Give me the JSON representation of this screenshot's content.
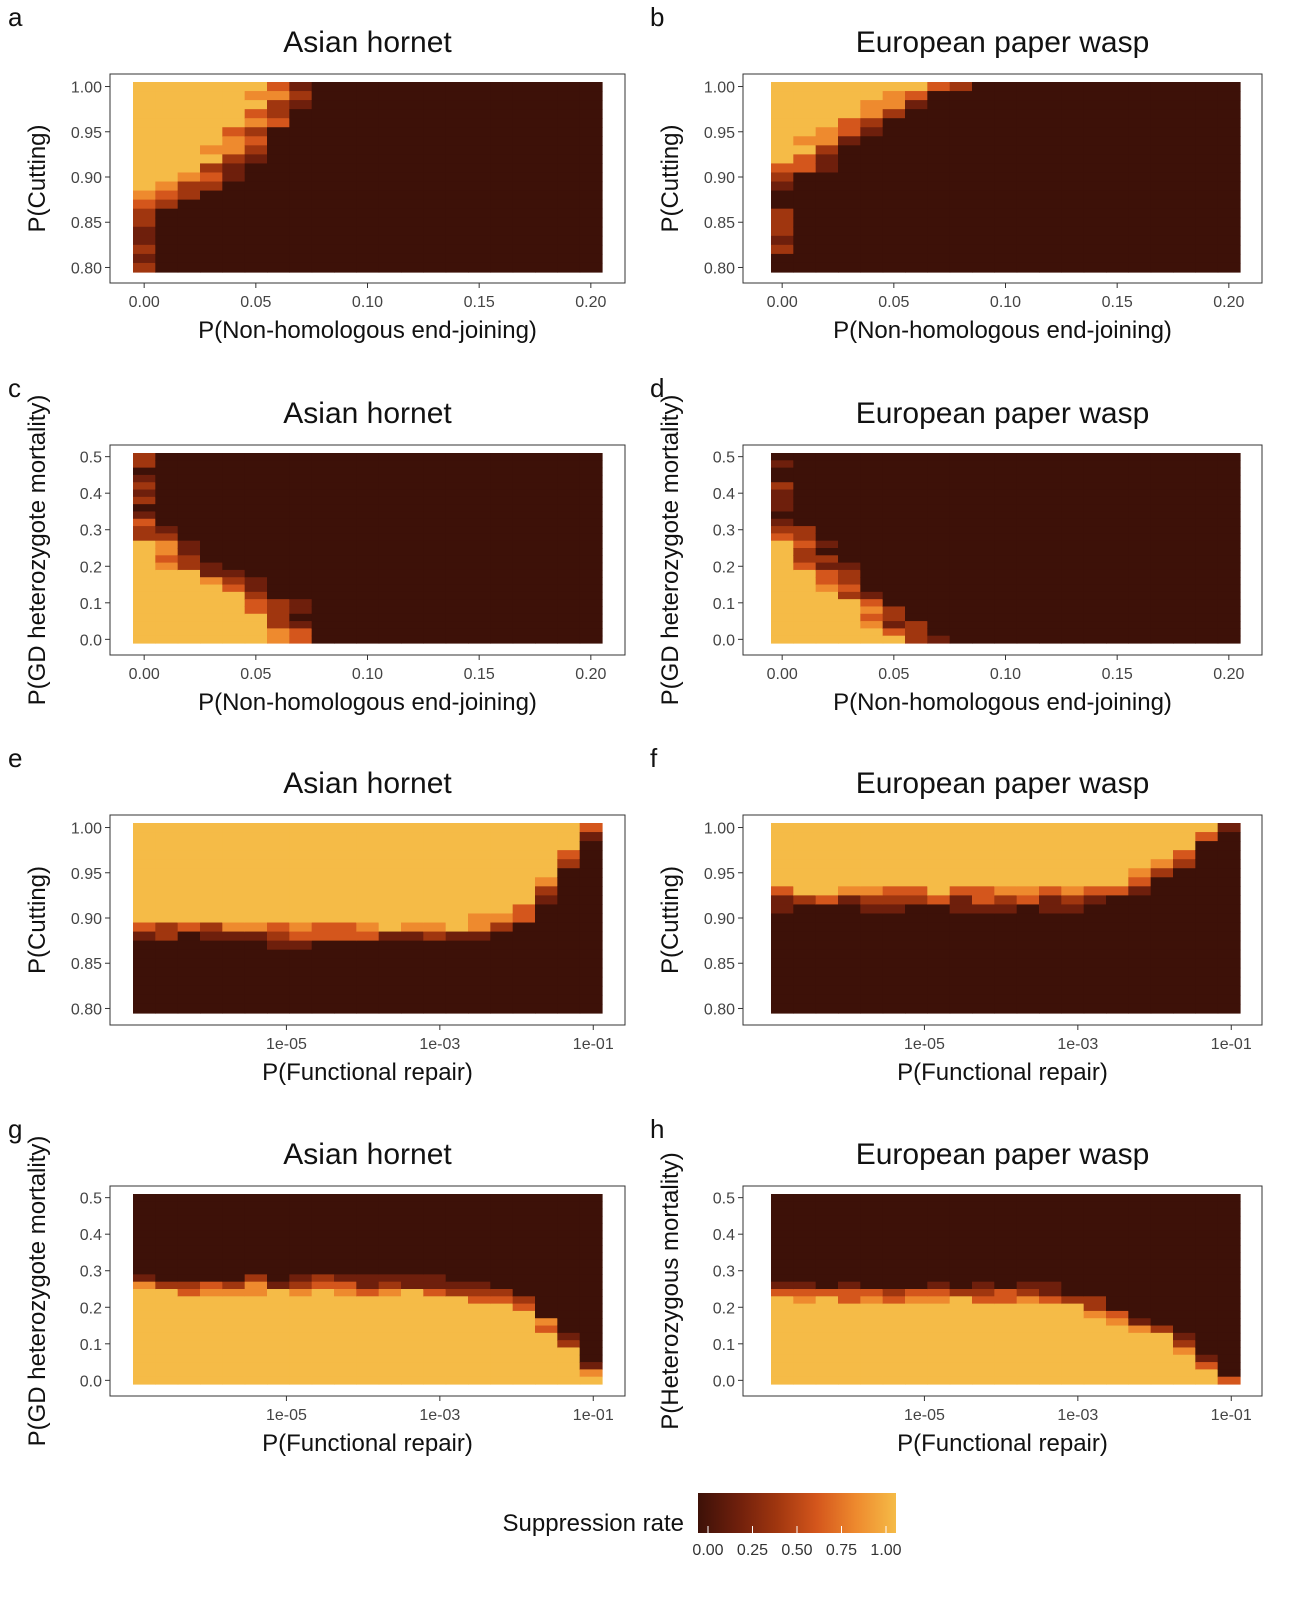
{
  "figure": {
    "legend": {
      "title": "Suppression rate",
      "ticks": [
        "0.00",
        "0.25",
        "0.50",
        "0.75",
        "1.00"
      ],
      "colors": [
        "#3d1108",
        "#6e1f0c",
        "#a0360f",
        "#d4561c",
        "#ee8a2e",
        "#f5bb47"
      ]
    }
  },
  "chart_data": [
    {
      "panel": "a",
      "type": "heatmap",
      "title": "Asian hornet",
      "xlabel": "P(Non-homologous end-joining)",
      "ylabel": "P(Cutting)",
      "xscale": "linear",
      "xlim": [
        -0.005,
        0.205
      ],
      "ylim": [
        0.795,
        1.005
      ],
      "x_ticks": [
        0.0,
        0.05,
        0.1,
        0.15,
        0.2
      ],
      "x_tick_labels": [
        "0.00",
        "0.05",
        "0.10",
        "0.15",
        "0.20"
      ],
      "y_ticks": [
        0.8,
        0.85,
        0.9,
        0.95,
        1.0
      ],
      "y_tick_labels": [
        "0.80",
        "0.85",
        "0.90",
        "0.95",
        "1.00"
      ],
      "description_of_values": "suppression rate 0-1; high (≈1) for P(NHEJ) near 0 and high cutting, boundary declining to ~0 by NHEJ≈0.07",
      "boundary": [
        {
          "y": 1.0,
          "x_max": 0.07
        },
        {
          "y": 0.95,
          "x_max": 0.06
        },
        {
          "y": 0.9,
          "x_max": 0.035
        },
        {
          "y": 0.86,
          "x_max": 0.005
        },
        {
          "y": 0.84,
          "x_max": 0.0
        }
      ]
    },
    {
      "panel": "b",
      "type": "heatmap",
      "title": "European paper wasp",
      "xlabel": "P(Non-homologous end-joining)",
      "ylabel": "P(Cutting)",
      "xscale": "linear",
      "xlim": [
        -0.005,
        0.205
      ],
      "ylim": [
        0.795,
        1.005
      ],
      "x_ticks": [
        0.0,
        0.05,
        0.1,
        0.15,
        0.2
      ],
      "x_tick_labels": [
        "0.00",
        "0.05",
        "0.10",
        "0.15",
        "0.20"
      ],
      "y_ticks": [
        0.8,
        0.85,
        0.9,
        0.95,
        1.0
      ],
      "y_tick_labels": [
        "0.80",
        "0.85",
        "0.90",
        "0.95",
        "1.00"
      ],
      "boundary": [
        {
          "y": 1.0,
          "x_max": 0.08
        },
        {
          "y": 0.95,
          "x_max": 0.035
        },
        {
          "y": 0.9,
          "x_max": 0.01
        },
        {
          "y": 0.88,
          "x_max": 0.0
        }
      ]
    },
    {
      "panel": "c",
      "type": "heatmap",
      "title": "Asian hornet",
      "xlabel": "P(Non-homologous end-joining)",
      "ylabel": "P(GD heterozygote mortality)",
      "xscale": "linear",
      "xlim": [
        -0.005,
        0.205
      ],
      "ylim": [
        -0.01,
        0.51
      ],
      "x_ticks": [
        0.0,
        0.05,
        0.1,
        0.15,
        0.2
      ],
      "x_tick_labels": [
        "0.00",
        "0.05",
        "0.10",
        "0.15",
        "0.20"
      ],
      "y_ticks": [
        0.0,
        0.1,
        0.2,
        0.3,
        0.4,
        0.5
      ],
      "y_tick_labels": [
        "0.0",
        "0.1",
        "0.2",
        "0.3",
        "0.4",
        "0.5"
      ],
      "boundary": [
        {
          "y": 0.0,
          "x_max": 0.075
        },
        {
          "y": 0.1,
          "x_max": 0.065
        },
        {
          "y": 0.2,
          "x_max": 0.03
        },
        {
          "y": 0.3,
          "x_max": 0.01
        },
        {
          "y": 0.33,
          "x_max": 0.0
        }
      ]
    },
    {
      "panel": "d",
      "type": "heatmap",
      "title": "European paper wasp",
      "xlabel": "P(Non-homologous end-joining)",
      "ylabel": "P(GD heterozygote mortality)",
      "xscale": "linear",
      "xlim": [
        -0.005,
        0.205
      ],
      "ylim": [
        -0.01,
        0.51
      ],
      "x_ticks": [
        0.0,
        0.05,
        0.1,
        0.15,
        0.2
      ],
      "x_tick_labels": [
        "0.00",
        "0.05",
        "0.10",
        "0.15",
        "0.20"
      ],
      "y_ticks": [
        0.0,
        0.1,
        0.2,
        0.3,
        0.4,
        0.5
      ],
      "y_tick_labels": [
        "0.0",
        "0.1",
        "0.2",
        "0.3",
        "0.4",
        "0.5"
      ],
      "boundary": [
        {
          "y": 0.0,
          "x_max": 0.065
        },
        {
          "y": 0.1,
          "x_max": 0.045
        },
        {
          "y": 0.2,
          "x_max": 0.025
        },
        {
          "y": 0.3,
          "x_max": 0.01
        },
        {
          "y": 0.33,
          "x_max": 0.0
        }
      ]
    },
    {
      "panel": "e",
      "type": "heatmap",
      "title": "Asian hornet",
      "xlabel": "P(Functional repair)",
      "ylabel": "P(Cutting)",
      "xscale": "log10",
      "xlim": [
        1e-07,
        0.13
      ],
      "ylim": [
        0.795,
        1.005
      ],
      "x_ticks": [
        1e-05,
        0.001,
        0.1
      ],
      "x_tick_labels": [
        "1e-05",
        "1e-03",
        "1e-01"
      ],
      "y_ticks": [
        0.8,
        0.85,
        0.9,
        0.95,
        1.0
      ],
      "y_tick_labels": [
        "0.80",
        "0.85",
        "0.90",
        "0.95",
        "1.00"
      ],
      "boundary": [
        {
          "x": 1e-07,
          "y_min": 0.88
        },
        {
          "x": 1e-05,
          "y_min": 0.875
        },
        {
          "x": 0.001,
          "y_min": 0.875
        },
        {
          "x": 0.01,
          "y_min": 0.885
        },
        {
          "x": 0.03,
          "y_min": 0.935
        },
        {
          "x": 0.1,
          "y_min": 0.995
        }
      ]
    },
    {
      "panel": "f",
      "type": "heatmap",
      "title": "European paper wasp",
      "xlabel": "P(Functional repair)",
      "ylabel": "P(Cutting)",
      "xscale": "log10",
      "xlim": [
        1e-07,
        0.13
      ],
      "ylim": [
        0.795,
        1.005
      ],
      "x_ticks": [
        1e-05,
        0.001,
        0.1
      ],
      "x_tick_labels": [
        "1e-05",
        "1e-03",
        "1e-01"
      ],
      "y_ticks": [
        0.8,
        0.85,
        0.9,
        0.95,
        1.0
      ],
      "y_tick_labels": [
        "0.80",
        "0.85",
        "0.90",
        "0.95",
        "1.00"
      ],
      "boundary": [
        {
          "x": 1e-07,
          "y_min": 0.915
        },
        {
          "x": 0.001,
          "y_min": 0.915
        },
        {
          "x": 0.005,
          "y_min": 0.925
        },
        {
          "x": 0.02,
          "y_min": 0.955
        },
        {
          "x": 0.08,
          "y_min": 1.0
        }
      ]
    },
    {
      "panel": "g",
      "type": "heatmap",
      "title": "Asian hornet",
      "xlabel": "P(Functional repair)",
      "ylabel": "P(GD heterozygote mortality)",
      "xscale": "log10",
      "xlim": [
        1e-07,
        0.13
      ],
      "ylim": [
        -0.01,
        0.51
      ],
      "x_ticks": [
        1e-05,
        0.001,
        0.1
      ],
      "x_tick_labels": [
        "1e-05",
        "1e-03",
        "1e-01"
      ],
      "y_ticks": [
        0.0,
        0.1,
        0.2,
        0.3,
        0.4,
        0.5
      ],
      "y_tick_labels": [
        "0.0",
        "0.1",
        "0.2",
        "0.3",
        "0.4",
        "0.5"
      ],
      "boundary": [
        {
          "x": 1e-07,
          "y_max": 0.28
        },
        {
          "x": 0.001,
          "y_max": 0.27
        },
        {
          "x": 0.01,
          "y_max": 0.24
        },
        {
          "x": 0.04,
          "y_max": 0.14
        },
        {
          "x": 0.1,
          "y_max": 0.04
        }
      ]
    },
    {
      "panel": "h",
      "type": "heatmap",
      "title": "European paper wasp",
      "xlabel": "P(Functional repair)",
      "ylabel": "P(Heterozygous mortality)",
      "xscale": "log10",
      "xlim": [
        1e-07,
        0.13
      ],
      "ylim": [
        -0.01,
        0.51
      ],
      "x_ticks": [
        1e-05,
        0.001,
        0.1
      ],
      "x_tick_labels": [
        "1e-05",
        "1e-03",
        "1e-01"
      ],
      "y_ticks": [
        0.0,
        0.1,
        0.2,
        0.3,
        0.4,
        0.5
      ],
      "y_tick_labels": [
        "0.0",
        "0.1",
        "0.2",
        "0.3",
        "0.4",
        "0.5"
      ],
      "boundary": [
        {
          "x": 1e-07,
          "y_max": 0.26
        },
        {
          "x": 0.0005,
          "y_max": 0.25
        },
        {
          "x": 0.003,
          "y_max": 0.2
        },
        {
          "x": 0.02,
          "y_max": 0.13
        },
        {
          "x": 0.06,
          "y_max": 0.04
        },
        {
          "x": 0.1,
          "y_max": 0.0
        }
      ]
    }
  ]
}
